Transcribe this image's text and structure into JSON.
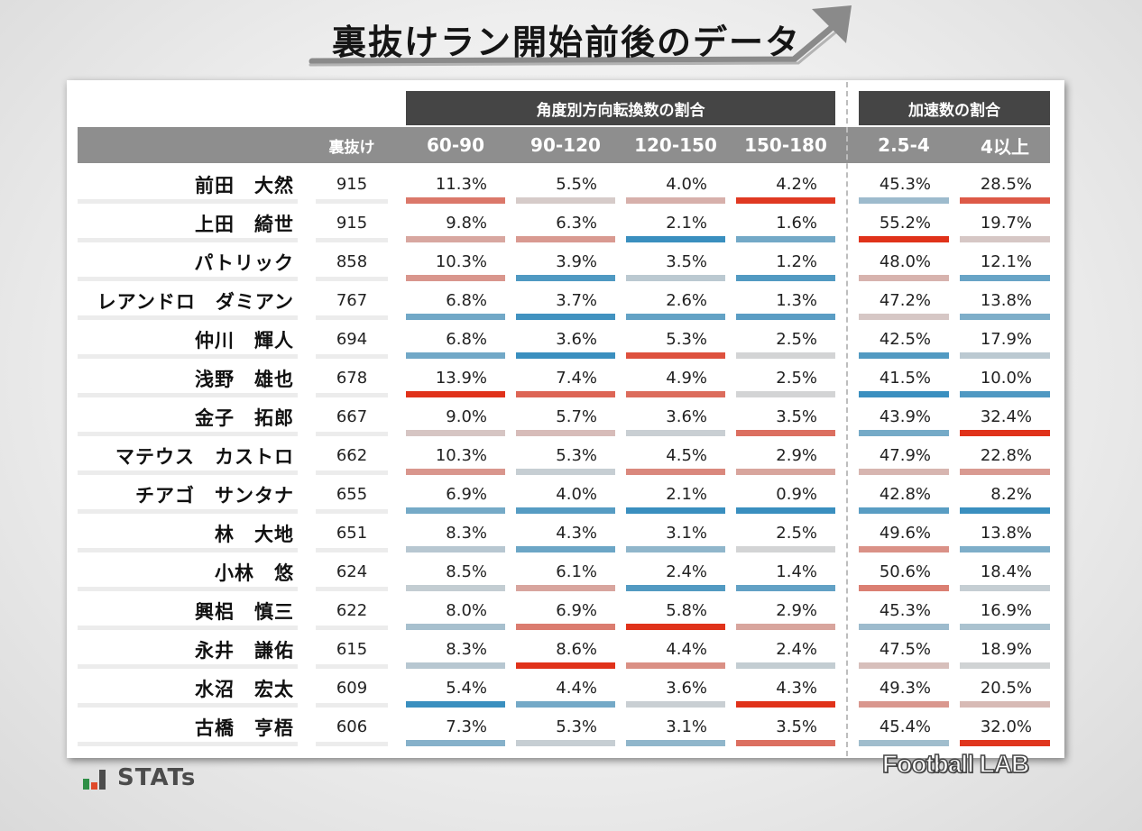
{
  "title": "裏抜けラン開始前後のデータ",
  "group_headers": {
    "angle": "角度別方向転換数の割合",
    "accel": "加速数の割合"
  },
  "col_headers": {
    "count": "裏抜け",
    "a1": "60-90",
    "a2": "90-120",
    "a3": "120-150",
    "a4": "150-180",
    "b1": "2.5-4",
    "b2": "4以上"
  },
  "colors": {
    "high": "#e0321a",
    "low": "#3a8fbf",
    "neutral": "#d5d5d5"
  },
  "chart_data": {
    "type": "table",
    "title": "裏抜けラン開始前後のデータ",
    "columns": [
      "裏抜け",
      "60-90",
      "90-120",
      "120-150",
      "150-180",
      "2.5-4",
      "4以上"
    ],
    "rows": [
      {
        "name": "前田　大然",
        "count": "915",
        "values": [
          "11.3%",
          "5.5%",
          "4.0%",
          "4.2%",
          "45.3%",
          "28.5%"
        ]
      },
      {
        "name": "上田　綺世",
        "count": "915",
        "values": [
          "9.8%",
          "6.3%",
          "2.1%",
          "1.6%",
          "55.2%",
          "19.7%"
        ]
      },
      {
        "name": "パトリック",
        "count": "858",
        "values": [
          "10.3%",
          "3.9%",
          "3.5%",
          "1.2%",
          "48.0%",
          "12.1%"
        ]
      },
      {
        "name": "レアンドロ　ダミアン",
        "count": "767",
        "values": [
          "6.8%",
          "3.7%",
          "2.6%",
          "1.3%",
          "47.2%",
          "13.8%"
        ]
      },
      {
        "name": "仲川　輝人",
        "count": "694",
        "values": [
          "6.8%",
          "3.6%",
          "5.3%",
          "2.5%",
          "42.5%",
          "17.9%"
        ]
      },
      {
        "name": "浅野　雄也",
        "count": "678",
        "values": [
          "13.9%",
          "7.4%",
          "4.9%",
          "2.5%",
          "41.5%",
          "10.0%"
        ]
      },
      {
        "name": "金子　拓郎",
        "count": "667",
        "values": [
          "9.0%",
          "5.7%",
          "3.6%",
          "3.5%",
          "43.9%",
          "32.4%"
        ]
      },
      {
        "name": "マテウス　カストロ",
        "count": "662",
        "values": [
          "10.3%",
          "5.3%",
          "4.5%",
          "2.9%",
          "47.9%",
          "22.8%"
        ]
      },
      {
        "name": "チアゴ　サンタナ",
        "count": "655",
        "values": [
          "6.9%",
          "4.0%",
          "2.1%",
          "0.9%",
          "42.8%",
          "8.2%"
        ]
      },
      {
        "name": "林　大地",
        "count": "651",
        "values": [
          "8.3%",
          "4.3%",
          "3.1%",
          "2.5%",
          "49.6%",
          "13.8%"
        ]
      },
      {
        "name": "小林　悠",
        "count": "624",
        "values": [
          "8.5%",
          "6.1%",
          "2.4%",
          "1.4%",
          "50.6%",
          "18.4%"
        ]
      },
      {
        "name": "興梠　慎三",
        "count": "622",
        "values": [
          "8.0%",
          "6.9%",
          "5.8%",
          "2.9%",
          "45.3%",
          "16.9%"
        ]
      },
      {
        "name": "永井　謙佑",
        "count": "615",
        "values": [
          "8.3%",
          "8.6%",
          "4.4%",
          "2.4%",
          "47.5%",
          "18.9%"
        ]
      },
      {
        "name": "水沼　宏太",
        "count": "609",
        "values": [
          "5.4%",
          "4.4%",
          "3.6%",
          "4.3%",
          "49.3%",
          "20.5%"
        ]
      },
      {
        "name": "古橋　亨梧",
        "count": "606",
        "values": [
          "7.3%",
          "5.3%",
          "3.1%",
          "3.5%",
          "45.4%",
          "32.0%"
        ]
      }
    ]
  },
  "logos": {
    "stats": "STATs",
    "footballlab": "Football LAB"
  }
}
